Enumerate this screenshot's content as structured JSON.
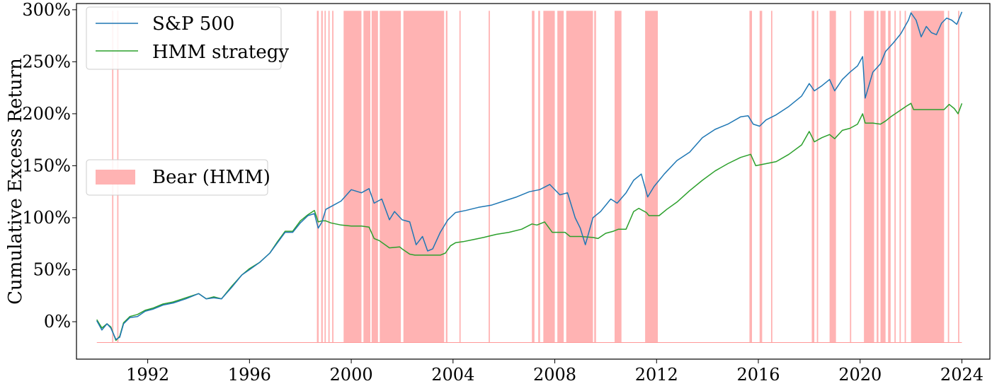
{
  "chart_data": {
    "type": "line",
    "title": "",
    "ylabel": "Cumulative Excess Return",
    "xlabel": "",
    "xlim": [
      1989.2,
      2025.1
    ],
    "ylim": [
      -0.36,
      3.06
    ],
    "x_ticks": [
      1992,
      1996,
      2000,
      2004,
      2008,
      2012,
      2016,
      2020,
      2024
    ],
    "x_tick_labels": [
      "1992",
      "1996",
      "2000",
      "2004",
      "2008",
      "2012",
      "2016",
      "2020",
      "2024"
    ],
    "y_ticks": [
      0,
      0.5,
      1.0,
      1.5,
      2.0,
      2.5,
      3.0
    ],
    "y_tick_labels": [
      "0%",
      "50%",
      "100%",
      "150%",
      "200%",
      "250%",
      "300%"
    ],
    "grid": false,
    "legend_placement": "top-left",
    "series": [
      {
        "name": "S&P 500",
        "color": "#1f77b4",
        "x": [
          1990.0,
          1990.2,
          1990.4,
          1990.55,
          1990.75,
          1990.9,
          1991.05,
          1991.3,
          1991.6,
          1991.9,
          1992.2,
          1992.6,
          1993.0,
          1993.5,
          1994.0,
          1994.3,
          1994.6,
          1994.9,
          1995.3,
          1995.7,
          1996.0,
          1996.4,
          1996.8,
          1997.1,
          1997.4,
          1997.7,
          1998.0,
          1998.3,
          1998.55,
          1998.7,
          1998.85,
          1999.0,
          1999.3,
          1999.6,
          2000.0,
          2000.4,
          2000.7,
          2000.9,
          2001.2,
          2001.5,
          2001.7,
          2002.0,
          2002.3,
          2002.55,
          2002.8,
          2003.0,
          2003.2,
          2003.5,
          2003.8,
          2004.1,
          2004.5,
          2005.0,
          2005.5,
          2006.0,
          2006.5,
          2007.0,
          2007.4,
          2007.8,
          2008.2,
          2008.5,
          2008.8,
          2009.0,
          2009.2,
          2009.5,
          2009.8,
          2010.2,
          2010.45,
          2010.8,
          2011.1,
          2011.4,
          2011.65,
          2011.9,
          2012.3,
          2012.8,
          2013.3,
          2013.8,
          2014.3,
          2014.8,
          2015.3,
          2015.6,
          2015.8,
          2016.05,
          2016.3,
          2016.7,
          2017.2,
          2017.7,
          2018.0,
          2018.2,
          2018.5,
          2018.8,
          2019.0,
          2019.3,
          2019.6,
          2019.9,
          2020.1,
          2020.2,
          2020.5,
          2020.8,
          2021.0,
          2021.3,
          2021.6,
          2021.9,
          2022.0,
          2022.2,
          2022.4,
          2022.6,
          2022.8,
          2023.0,
          2023.2,
          2023.4,
          2023.6,
          2023.8,
          2024.0
        ],
        "values": [
          0.01,
          -0.08,
          -0.02,
          -0.06,
          -0.17,
          -0.15,
          -0.02,
          0.04,
          0.05,
          0.1,
          0.12,
          0.16,
          0.18,
          0.22,
          0.27,
          0.22,
          0.23,
          0.22,
          0.33,
          0.45,
          0.5,
          0.57,
          0.66,
          0.76,
          0.86,
          0.86,
          0.95,
          1.02,
          1.04,
          0.9,
          0.96,
          1.08,
          1.12,
          1.16,
          1.27,
          1.24,
          1.28,
          1.14,
          1.18,
          0.98,
          1.06,
          0.98,
          0.96,
          0.74,
          0.82,
          0.68,
          0.7,
          0.86,
          0.98,
          1.05,
          1.07,
          1.1,
          1.12,
          1.16,
          1.2,
          1.25,
          1.27,
          1.32,
          1.22,
          1.24,
          1.0,
          0.9,
          0.74,
          1.0,
          1.06,
          1.18,
          1.14,
          1.24,
          1.36,
          1.42,
          1.2,
          1.3,
          1.42,
          1.55,
          1.63,
          1.77,
          1.85,
          1.9,
          1.97,
          1.98,
          1.9,
          1.88,
          1.94,
          1.99,
          2.07,
          2.17,
          2.29,
          2.22,
          2.27,
          2.33,
          2.22,
          2.33,
          2.4,
          2.46,
          2.55,
          2.15,
          2.4,
          2.48,
          2.6,
          2.68,
          2.77,
          2.9,
          2.97,
          2.9,
          2.74,
          2.84,
          2.78,
          2.76,
          2.87,
          2.92,
          2.9,
          2.86,
          2.98
        ]
      },
      {
        "name": "HMM strategy",
        "color": "#2ca02c",
        "x": [
          1990.0,
          1990.2,
          1990.4,
          1990.55,
          1990.75,
          1990.9,
          1991.05,
          1991.3,
          1991.6,
          1991.9,
          1992.2,
          1992.6,
          1993.0,
          1993.5,
          1994.0,
          1994.3,
          1994.6,
          1994.9,
          1995.3,
          1995.7,
          1996.0,
          1996.4,
          1996.8,
          1997.1,
          1997.4,
          1997.7,
          1998.0,
          1998.3,
          1998.55,
          1998.7,
          1998.85,
          1999.0,
          1999.2,
          1999.6,
          2000.0,
          2000.4,
          2000.7,
          2000.9,
          2001.1,
          2001.5,
          2001.9,
          2002.0,
          2002.3,
          2002.5,
          2003.0,
          2003.5,
          2003.7,
          2003.9,
          2004.1,
          2004.4,
          2004.8,
          2005.2,
          2005.7,
          2006.2,
          2006.7,
          2007.1,
          2007.3,
          2007.6,
          2007.9,
          2008.4,
          2008.6,
          2009.0,
          2009.5,
          2009.7,
          2010.0,
          2010.3,
          2010.5,
          2010.8,
          2011.1,
          2011.3,
          2011.6,
          2011.7,
          2012.1,
          2012.4,
          2012.8,
          2013.3,
          2013.8,
          2014.3,
          2014.8,
          2015.3,
          2015.7,
          2015.9,
          2016.3,
          2016.7,
          2017.2,
          2017.7,
          2018.0,
          2018.2,
          2018.5,
          2018.8,
          2019.0,
          2019.3,
          2019.6,
          2019.9,
          2020.1,
          2020.2,
          2020.5,
          2020.8,
          2021.0,
          2021.2,
          2021.5,
          2021.8,
          2022.0,
          2022.1,
          2022.5,
          2023.0,
          2023.3,
          2023.5,
          2023.7,
          2023.85,
          2024.0
        ],
        "values": [
          0.02,
          -0.06,
          -0.02,
          -0.05,
          -0.18,
          -0.14,
          -0.01,
          0.05,
          0.07,
          0.11,
          0.13,
          0.17,
          0.19,
          0.23,
          0.27,
          0.22,
          0.24,
          0.22,
          0.34,
          0.45,
          0.51,
          0.57,
          0.66,
          0.77,
          0.87,
          0.87,
          0.97,
          1.03,
          1.07,
          0.96,
          0.97,
          0.97,
          0.95,
          0.93,
          0.92,
          0.92,
          0.91,
          0.8,
          0.78,
          0.71,
          0.72,
          0.7,
          0.65,
          0.64,
          0.64,
          0.64,
          0.66,
          0.73,
          0.76,
          0.77,
          0.79,
          0.81,
          0.84,
          0.86,
          0.89,
          0.94,
          0.93,
          0.96,
          0.86,
          0.86,
          0.82,
          0.82,
          0.81,
          0.8,
          0.85,
          0.87,
          0.89,
          0.89,
          1.06,
          1.09,
          1.05,
          1.02,
          1.02,
          1.08,
          1.15,
          1.26,
          1.36,
          1.45,
          1.52,
          1.58,
          1.61,
          1.5,
          1.52,
          1.54,
          1.61,
          1.7,
          1.83,
          1.73,
          1.77,
          1.8,
          1.76,
          1.84,
          1.86,
          1.9,
          2.0,
          1.91,
          1.91,
          1.9,
          1.93,
          1.97,
          2.02,
          2.07,
          2.1,
          2.04,
          2.04,
          2.04,
          2.04,
          2.09,
          2.05,
          2.0,
          2.1
        ]
      }
    ],
    "shaded_regions": {
      "name": "Bear (HMM)",
      "color": "#ff9999",
      "ymin": -0.2,
      "ymax": 2.99,
      "intervals": [
        [
          1990.6,
          1990.65
        ],
        [
          1990.8,
          1990.85
        ],
        [
          1998.65,
          1998.72
        ],
        [
          1998.82,
          1998.88
        ],
        [
          1998.95,
          1999.0
        ],
        [
          1999.1,
          1999.15
        ],
        [
          1999.25,
          1999.3
        ],
        [
          1999.7,
          2000.4
        ],
        [
          2000.48,
          2000.75
        ],
        [
          2000.8,
          2001.05
        ],
        [
          2001.12,
          2001.95
        ],
        [
          2002.05,
          2003.65
        ],
        [
          2003.72,
          2003.78
        ],
        [
          2004.25,
          2004.3
        ],
        [
          2005.4,
          2005.45
        ],
        [
          2007.1,
          2007.2
        ],
        [
          2007.35,
          2007.42
        ],
        [
          2007.55,
          2008.0
        ],
        [
          2008.1,
          2008.35
        ],
        [
          2008.45,
          2009.5
        ],
        [
          2009.55,
          2009.62
        ],
        [
          2010.35,
          2010.62
        ],
        [
          2011.55,
          2012.05
        ],
        [
          2015.65,
          2015.75
        ],
        [
          2016.05,
          2016.15
        ],
        [
          2016.5,
          2016.55
        ],
        [
          2018.1,
          2018.2
        ],
        [
          2018.3,
          2018.35
        ],
        [
          2018.8,
          2019.05
        ],
        [
          2019.6,
          2019.65
        ],
        [
          2020.15,
          2020.55
        ],
        [
          2020.65,
          2020.72
        ],
        [
          2020.8,
          2021.0
        ],
        [
          2021.1,
          2021.2
        ],
        [
          2021.35,
          2021.4
        ],
        [
          2021.55,
          2021.6
        ],
        [
          2021.75,
          2021.8
        ],
        [
          2022.0,
          2023.3
        ],
        [
          2023.45,
          2023.5
        ],
        [
          2023.85,
          2023.9
        ]
      ]
    }
  }
}
